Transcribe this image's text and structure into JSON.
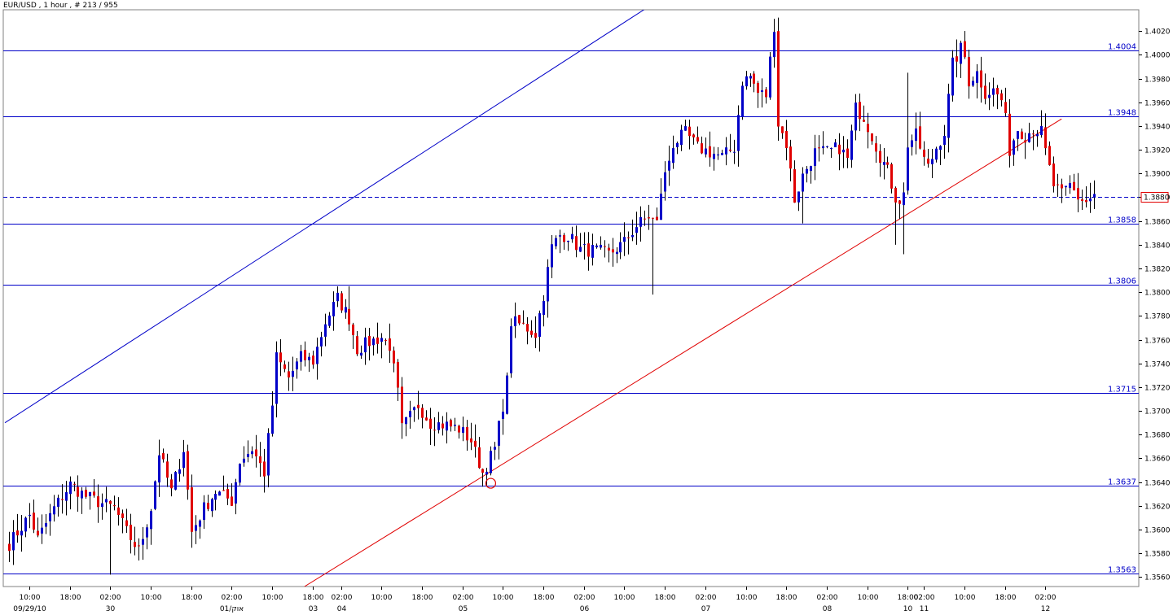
{
  "window": {
    "title": "EUR/USD , 1 hour , # 213 / 955"
  },
  "chart_data": {
    "type": "candlestick",
    "title": "EUR/USD , 1 hour , # 213 / 955",
    "xlabel": "",
    "ylabel": "",
    "ylim": [
      1.3552,
      1.4038
    ],
    "grid": false,
    "y_ticks": [
      "1.4020",
      "1.4000",
      "1.3980",
      "1.3960",
      "1.3940",
      "1.3920",
      "1.3900",
      "1.3880",
      "1.3860",
      "1.3840",
      "1.3820",
      "1.3800",
      "1.3780",
      "1.3760",
      "1.3740",
      "1.3720",
      "1.3700",
      "1.3680",
      "1.3660",
      "1.3640",
      "1.3620",
      "1.3600",
      "1.3580",
      "1.3560"
    ],
    "x_ticks": [
      {
        "time": "10:00",
        "date": "09/29/10",
        "bar": 5
      },
      {
        "time": "18:00",
        "date": "",
        "bar": 15
      },
      {
        "time": "02:00",
        "date": "30",
        "bar": 25
      },
      {
        "time": "10:00",
        "date": "",
        "bar": 35
      },
      {
        "time": "18:00",
        "date": "",
        "bar": 45
      },
      {
        "time": "02:00",
        "date": "01/אוק",
        "bar": 55
      },
      {
        "time": "10:00",
        "date": "",
        "bar": 65
      },
      {
        "time": "18:00",
        "date": "03",
        "bar": 75
      },
      {
        "time": "02:00",
        "date": "04",
        "bar": 82
      },
      {
        "time": "10:00",
        "date": "",
        "bar": 92
      },
      {
        "time": "18:00",
        "date": "",
        "bar": 102
      },
      {
        "time": "02:00",
        "date": "05",
        "bar": 112
      },
      {
        "time": "10:00",
        "date": "",
        "bar": 122
      },
      {
        "time": "18:00",
        "date": "",
        "bar": 132
      },
      {
        "time": "02:00",
        "date": "06",
        "bar": 142
      },
      {
        "time": "10:00",
        "date": "",
        "bar": 152
      },
      {
        "time": "18:00",
        "date": "",
        "bar": 162
      },
      {
        "time": "02:00",
        "date": "07",
        "bar": 172
      },
      {
        "time": "10:00",
        "date": "",
        "bar": 182
      },
      {
        "time": "18:00",
        "date": "",
        "bar": 192
      },
      {
        "time": "02:00",
        "date": "08",
        "bar": 202
      },
      {
        "time": "10:00",
        "date": "",
        "bar": 212
      },
      {
        "time": "18:00",
        "date": "10",
        "bar": 222
      },
      {
        "time": "02:00",
        "date": "11",
        "bar": 226
      },
      {
        "time": "10:00",
        "date": "",
        "bar": 236
      },
      {
        "time": "18:00",
        "date": "",
        "bar": 246
      },
      {
        "time": "02:00",
        "date": "12",
        "bar": 256
      }
    ],
    "levels": [
      {
        "value": 1.4004,
        "label": "1.4004"
      },
      {
        "value": 1.3948,
        "label": "1.3948"
      },
      {
        "value": 1.3858,
        "label": "1.3858"
      },
      {
        "value": 1.3806,
        "label": "1.3806"
      },
      {
        "value": 1.3715,
        "label": "1.3715"
      },
      {
        "value": 1.3637,
        "label": "1.3637"
      },
      {
        "value": 1.3563,
        "label": "1.3563"
      }
    ],
    "current_price": {
      "value": 1.388,
      "label": "1.3880"
    },
    "trendlines": [
      {
        "name": "",
        "color": "#0000c8",
        "from": {
          "bar": -1,
          "price": 1.369
        },
        "to": {
          "bar": 160,
          "price": 1.4045
        }
      },
      {
        "name": "",
        "color": "#e00000",
        "from": {
          "bar": 73,
          "price": 1.3552
        },
        "to": {
          "bar": 260,
          "price": 1.3946
        }
      }
    ],
    "markers": [
      {
        "type": "circle",
        "color": "#e00000",
        "bar": 119,
        "price": 1.3639
      }
    ],
    "candle_colors": {
      "up": "#0000c8",
      "down": "#e00000"
    },
    "close_path": [
      [
        0,
        1.3588
      ],
      [
        5,
        1.3612
      ],
      [
        7,
        1.3592
      ],
      [
        11,
        1.3618
      ],
      [
        15,
        1.3638
      ],
      [
        19,
        1.3628
      ],
      [
        23,
        1.3622
      ],
      [
        26,
        1.3618
      ],
      [
        29,
        1.3598
      ],
      [
        32,
        1.3582
      ],
      [
        35,
        1.3618
      ],
      [
        37,
        1.3665
      ],
      [
        40,
        1.3632
      ],
      [
        43,
        1.3668
      ],
      [
        45,
        1.3598
      ],
      [
        48,
        1.3618
      ],
      [
        51,
        1.3632
      ],
      [
        55,
        1.3624
      ],
      [
        57,
        1.3658
      ],
      [
        60,
        1.3668
      ],
      [
        63,
        1.3648
      ],
      [
        65,
        1.3705
      ],
      [
        66,
        1.3745
      ],
      [
        69,
        1.3728
      ],
      [
        72,
        1.3745
      ],
      [
        75,
        1.3742
      ],
      [
        78,
        1.3775
      ],
      [
        81,
        1.3795
      ],
      [
        84,
        1.3778
      ],
      [
        86,
        1.3752
      ],
      [
        89,
        1.3758
      ],
      [
        92,
        1.3762
      ],
      [
        94,
        1.3755
      ],
      [
        96,
        1.3715
      ],
      [
        97,
        1.3685
      ],
      [
        101,
        1.3705
      ],
      [
        104,
        1.369
      ],
      [
        108,
        1.3688
      ],
      [
        111,
        1.3685
      ],
      [
        114,
        1.3675
      ],
      [
        115,
        1.3665
      ],
      [
        117,
        1.3648
      ],
      [
        120,
        1.3668
      ],
      [
        122,
        1.3705
      ],
      [
        123,
        1.3725
      ],
      [
        124,
        1.3775
      ],
      [
        127,
        1.3772
      ],
      [
        130,
        1.3765
      ],
      [
        132,
        1.3798
      ],
      [
        133,
        1.3818
      ],
      [
        134,
        1.3838
      ],
      [
        136,
        1.3848
      ],
      [
        138,
        1.3848
      ],
      [
        141,
        1.3836
      ],
      [
        145,
        1.3835
      ],
      [
        148,
        1.3832
      ],
      [
        152,
        1.3842
      ],
      [
        155,
        1.3856
      ],
      [
        158,
        1.3864
      ],
      [
        160,
        1.3858
      ],
      [
        161,
        1.3885
      ],
      [
        164,
        1.3925
      ],
      [
        167,
        1.3934
      ],
      [
        170,
        1.3922
      ],
      [
        173,
        1.3918
      ],
      [
        176,
        1.3914
      ],
      [
        179,
        1.3922
      ],
      [
        181,
        1.3978
      ],
      [
        183,
        1.3982
      ],
      [
        185,
        1.3968
      ],
      [
        187,
        1.3966
      ],
      [
        189,
        1.4025
      ],
      [
        190,
        1.3942
      ],
      [
        192,
        1.3925
      ],
      [
        194,
        1.3878
      ],
      [
        196,
        1.3898
      ],
      [
        199,
        1.3918
      ],
      [
        202,
        1.3918
      ],
      [
        205,
        1.3922
      ],
      [
        207,
        1.3912
      ],
      [
        209,
        1.3955
      ],
      [
        211,
        1.3948
      ],
      [
        213,
        1.3932
      ],
      [
        215,
        1.3915
      ],
      [
        217,
        1.3902
      ],
      [
        219,
        1.388
      ],
      [
        220,
        1.3878
      ],
      [
        221,
        1.3882
      ],
      [
        222,
        1.3925
      ],
      [
        224,
        1.3932
      ],
      [
        226,
        1.3912
      ],
      [
        227,
        1.3905
      ],
      [
        229,
        1.3922
      ],
      [
        231,
        1.3935
      ],
      [
        233,
        1.3992
      ],
      [
        235,
        1.4005
      ],
      [
        236,
        1.3998
      ],
      [
        237,
        1.3978
      ],
      [
        239,
        1.3985
      ],
      [
        241,
        1.3968
      ],
      [
        243,
        1.397
      ],
      [
        245,
        1.3962
      ],
      [
        246,
        1.3945
      ],
      [
        247,
        1.392
      ],
      [
        249,
        1.3938
      ],
      [
        251,
        1.3932
      ],
      [
        253,
        1.3938
      ],
      [
        255,
        1.3935
      ],
      [
        256,
        1.3918
      ],
      [
        258,
        1.389
      ],
      [
        260,
        1.3882
      ],
      [
        262,
        1.389
      ],
      [
        264,
        1.388
      ],
      [
        266,
        1.3876
      ],
      [
        268,
        1.3882
      ]
    ],
    "wick_extremes": [
      {
        "bar": 25,
        "price": 1.3562
      },
      {
        "bar": 84,
        "price": 1.3805
      },
      {
        "bar": 117,
        "price": 1.3644
      },
      {
        "bar": 159,
        "price": 1.3798
      },
      {
        "bar": 189,
        "price": 1.4028
      },
      {
        "bar": 196,
        "price": 1.3858
      },
      {
        "bar": 219,
        "price": 1.384
      },
      {
        "bar": 221,
        "price": 1.3832
      },
      {
        "bar": 222,
        "price": 1.3985
      },
      {
        "bar": 234,
        "price": 1.4013
      }
    ]
  }
}
